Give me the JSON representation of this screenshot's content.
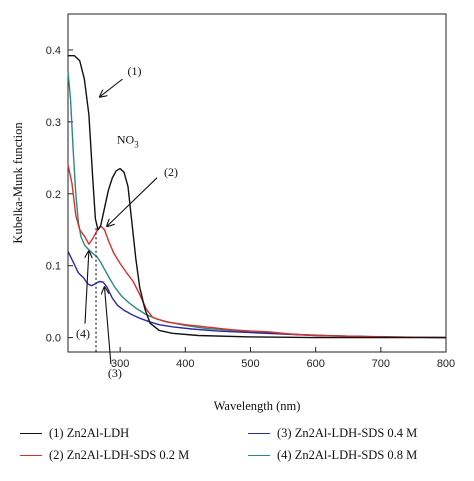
{
  "chart_data": {
    "type": "line",
    "xlabel": "Wavelength (nm)",
    "ylabel": "Kubelka-Munk function",
    "xlim": [
      220,
      800
    ],
    "ylim": [
      -0.02,
      0.45
    ],
    "xticks": [
      300,
      400,
      500,
      600,
      700,
      800
    ],
    "yticks": [
      0.0,
      0.1,
      0.2,
      0.3,
      0.4
    ],
    "xtick_labels": [
      "300",
      "400",
      "500",
      "600",
      "700",
      "800"
    ],
    "ytick_labels": [
      "0.0",
      "0.1",
      "0.2",
      "0.3",
      "0.4"
    ],
    "grid": false,
    "legend_position": "bottom",
    "series": [
      {
        "name": "(1) Zn2Al-LDH",
        "color": "#111111",
        "points": [
          [
            220,
            0.392
          ],
          [
            230,
            0.392
          ],
          [
            238,
            0.385
          ],
          [
            245,
            0.36
          ],
          [
            252,
            0.31
          ],
          [
            258,
            0.22
          ],
          [
            262,
            0.165
          ],
          [
            266,
            0.15
          ],
          [
            270,
            0.155
          ],
          [
            276,
            0.18
          ],
          [
            282,
            0.205
          ],
          [
            288,
            0.222
          ],
          [
            294,
            0.232
          ],
          [
            300,
            0.235
          ],
          [
            306,
            0.23
          ],
          [
            312,
            0.21
          ],
          [
            318,
            0.16
          ],
          [
            324,
            0.11
          ],
          [
            330,
            0.07
          ],
          [
            338,
            0.04
          ],
          [
            346,
            0.02
          ],
          [
            360,
            0.01
          ],
          [
            380,
            0.006
          ],
          [
            420,
            0.003
          ],
          [
            500,
            0.001
          ],
          [
            600,
            0.0
          ],
          [
            700,
            0.0
          ],
          [
            800,
            0.0
          ]
        ]
      },
      {
        "name": "(2) Zn2Al-LDH-SDS 0.2 M",
        "color": "#d9302c",
        "points": [
          [
            220,
            0.24
          ],
          [
            226,
            0.215
          ],
          [
            232,
            0.17
          ],
          [
            238,
            0.15
          ],
          [
            246,
            0.14
          ],
          [
            252,
            0.13
          ],
          [
            258,
            0.138
          ],
          [
            264,
            0.148
          ],
          [
            270,
            0.155
          ],
          [
            276,
            0.15
          ],
          [
            282,
            0.135
          ],
          [
            290,
            0.118
          ],
          [
            300,
            0.103
          ],
          [
            310,
            0.09
          ],
          [
            320,
            0.078
          ],
          [
            330,
            0.06
          ],
          [
            340,
            0.04
          ],
          [
            350,
            0.028
          ],
          [
            370,
            0.022
          ],
          [
            400,
            0.018
          ],
          [
            430,
            0.015
          ],
          [
            470,
            0.011
          ],
          [
            500,
            0.009
          ],
          [
            530,
            0.008
          ],
          [
            560,
            0.005
          ],
          [
            600,
            0.003
          ],
          [
            650,
            0.002
          ],
          [
            700,
            0.001
          ],
          [
            800,
            0.0
          ]
        ]
      },
      {
        "name": "(3) Zn2Al-LDH-SDS 0.4 M",
        "color": "#2b2b9f",
        "points": [
          [
            220,
            0.12
          ],
          [
            228,
            0.105
          ],
          [
            236,
            0.09
          ],
          [
            244,
            0.083
          ],
          [
            250,
            0.075
          ],
          [
            256,
            0.072
          ],
          [
            262,
            0.075
          ],
          [
            268,
            0.078
          ],
          [
            274,
            0.077
          ],
          [
            280,
            0.07
          ],
          [
            288,
            0.055
          ],
          [
            296,
            0.045
          ],
          [
            306,
            0.038
          ],
          [
            318,
            0.032
          ],
          [
            330,
            0.027
          ],
          [
            345,
            0.022
          ],
          [
            360,
            0.018
          ],
          [
            380,
            0.015
          ],
          [
            410,
            0.012
          ],
          [
            450,
            0.009
          ],
          [
            500,
            0.007
          ],
          [
            550,
            0.005
          ],
          [
            600,
            0.003
          ],
          [
            700,
            0.001
          ],
          [
            800,
            0.0
          ]
        ]
      },
      {
        "name": "(4) Zn2Al-LDH-SDS 0.8 M",
        "color": "#2a8a7e",
        "points": [
          [
            220,
            0.37
          ],
          [
            224,
            0.33
          ],
          [
            228,
            0.26
          ],
          [
            232,
            0.2
          ],
          [
            236,
            0.16
          ],
          [
            240,
            0.14
          ],
          [
            246,
            0.128
          ],
          [
            252,
            0.122
          ],
          [
            258,
            0.117
          ],
          [
            264,
            0.113
          ],
          [
            270,
            0.105
          ],
          [
            276,
            0.095
          ],
          [
            284,
            0.082
          ],
          [
            292,
            0.07
          ],
          [
            302,
            0.058
          ],
          [
            314,
            0.048
          ],
          [
            326,
            0.04
          ],
          [
            340,
            0.032
          ],
          [
            356,
            0.026
          ],
          [
            372,
            0.022
          ],
          [
            400,
            0.017
          ],
          [
            430,
            0.013
          ],
          [
            470,
            0.01
          ],
          [
            520,
            0.007
          ],
          [
            580,
            0.004
          ],
          [
            650,
            0.002
          ],
          [
            720,
            0.001
          ],
          [
            800,
            0.0
          ]
        ]
      }
    ],
    "annotations": [
      {
        "text": "(1)",
        "x": 322,
        "y": 0.365,
        "arrow_to": [
          269,
          0.335
        ]
      },
      {
        "text": "(2)",
        "x": 378,
        "y": 0.225,
        "arrow_to": [
          280,
          0.155
        ]
      },
      {
        "text": "(3)",
        "x": 292,
        "y": -0.055,
        "arrow_to": [
          276,
          0.07
        ]
      },
      {
        "text": "(4)",
        "x": 243,
        "y": 0.0,
        "arrow_to": [
          252,
          0.12
        ]
      }
    ],
    "peak_label": {
      "text": "NO",
      "subscript": "3",
      "x": 295,
      "y": 0.27
    },
    "marker_line": {
      "x": 263,
      "y_top": 0.152,
      "y_bottom": -0.02
    }
  },
  "legend": {
    "items": [
      {
        "label": "(1) Zn2Al-LDH",
        "color": "#111111"
      },
      {
        "label": "(2) Zn2Al-LDH-SDS 0.2 M",
        "color": "#d9302c"
      },
      {
        "label": "(3) Zn2Al-LDH-SDS 0.4 M",
        "color": "#2b2b9f"
      },
      {
        "label": "(4) Zn2Al-LDH-SDS 0.8 M",
        "color": "#2a8a7e"
      }
    ]
  }
}
